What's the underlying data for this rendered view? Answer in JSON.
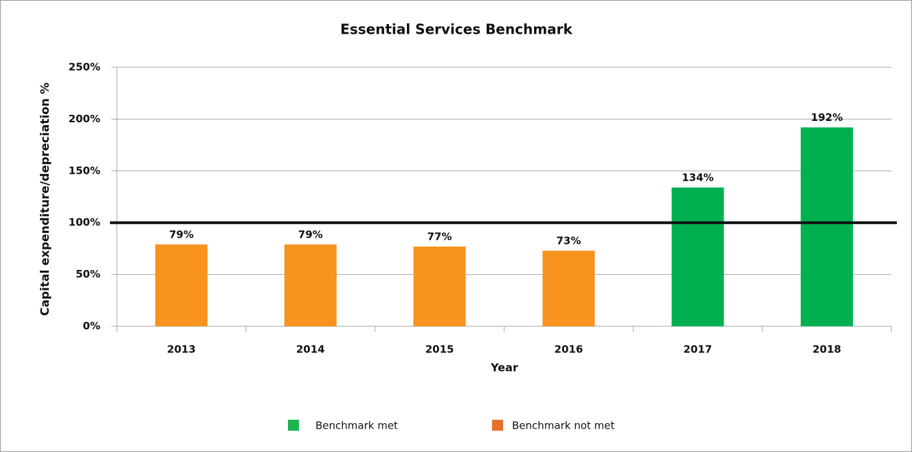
{
  "chart_data": {
    "type": "bar",
    "title": "Essential Services Benchmark",
    "x_label": "Year",
    "y_label": "Capital  expenditure/depreciation  %",
    "categories": [
      "2013",
      "2014",
      "2015",
      "2016",
      "2017",
      "2018"
    ],
    "values": [
      79,
      79,
      77,
      73,
      134,
      192
    ],
    "value_labels": [
      "79%",
      "79%",
      "77%",
      "73%",
      "134%",
      "192%"
    ],
    "colors": [
      "#f7931e",
      "#f7931e",
      "#f7931e",
      "#f7931e",
      "#00b050",
      "#00b050"
    ],
    "ylim": [
      0,
      250
    ],
    "yticks": [
      {
        "value": 0,
        "label": "0%"
      },
      {
        "value": 50,
        "label": "50%"
      },
      {
        "value": 100,
        "label": "100%"
      },
      {
        "value": 150,
        "label": "150%"
      },
      {
        "value": 200,
        "label": "200%"
      },
      {
        "value": 250,
        "label": "250%"
      }
    ],
    "grid": true,
    "reference_line": {
      "value": 100,
      "color": "#111111"
    },
    "legend": [
      {
        "name": "Benchmark met",
        "color": "#1fb451"
      },
      {
        "name": "Benchmark not met",
        "color": "#e8702a"
      }
    ],
    "legend_position": "bottom"
  }
}
